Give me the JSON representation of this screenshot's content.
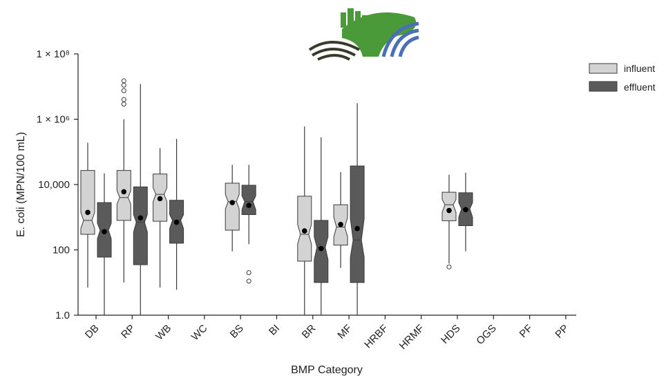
{
  "colors": {
    "influent": "#d3d3d3",
    "effluent": "#5a5a5a",
    "stroke": "#3a3a3a",
    "logo_green": "#4a9a3a",
    "logo_blue": "#4a6fb5",
    "logo_dark": "#3a3a2a"
  },
  "chart_data": {
    "type": "box",
    "xlabel": "BMP Category",
    "ylabel": "E. coli (MPN/100 mL)",
    "yscale": "log",
    "ylim": [
      1.0,
      100000000
    ],
    "yticks": [
      {
        "value": 1.0,
        "label": "1.0"
      },
      {
        "value": 100,
        "label": "100"
      },
      {
        "value": 10000,
        "label": "10,000"
      },
      {
        "value": 1000000,
        "label": "1 × 10⁶"
      },
      {
        "value": 100000000,
        "label": "1 × 10⁸"
      }
    ],
    "categories": [
      "DB",
      "RP",
      "WB",
      "WC",
      "BS",
      "BI",
      "BR",
      "MF",
      "HRBF",
      "HRMF",
      "HDS",
      "OGS",
      "PF",
      "PP"
    ],
    "legend": {
      "position": "top-right",
      "entries": [
        "influent",
        "effluent"
      ]
    },
    "series": [
      {
        "name": "influent",
        "boxes": [
          {
            "category": "DB",
            "whislo": 7,
            "q1": 300,
            "med": 800,
            "q3": 27000,
            "whishi": 190000,
            "mean": 1400,
            "notch": [
              450,
              1400
            ],
            "outliers": []
          },
          {
            "category": "RP",
            "whislo": 10,
            "q1": 800,
            "med": 4000,
            "q3": 27000,
            "whishi": 1000000,
            "mean": 6000,
            "notch": [
              2500,
              6500
            ],
            "outliers": [
              15000000,
              11000000,
              7500000,
              4000000,
              2900000
            ]
          },
          {
            "category": "WB",
            "whislo": 7,
            "q1": 750,
            "med": 5000,
            "q3": 21000,
            "whishi": 130000,
            "mean": 3700,
            "notch": [
              3000,
              8000
            ],
            "outliers": []
          },
          {
            "category": "BS",
            "whislo": 90,
            "q1": 400,
            "med": 3000,
            "q3": 11000,
            "whishi": 40000,
            "mean": 2800,
            "notch": [
              1800,
              5000
            ],
            "outliers": []
          },
          {
            "category": "BR",
            "whislo": 1,
            "q1": 45,
            "med": 300,
            "q3": 4400,
            "whishi": 600000,
            "mean": 380,
            "notch": [
              150,
              600
            ],
            "outliers": []
          },
          {
            "category": "MF",
            "whislo": 28,
            "q1": 140,
            "med": 500,
            "q3": 2400,
            "whishi": 24000,
            "mean": 600,
            "notch": [
              250,
              1000
            ],
            "outliers": []
          },
          {
            "category": "HDS",
            "whislo": 38,
            "q1": 780,
            "med": 2400,
            "q3": 5800,
            "whishi": 20000,
            "mean": 1600,
            "notch": [
              1400,
              3500
            ],
            "outliers": [
              30
            ]
          }
        ]
      },
      {
        "name": "effluent",
        "boxes": [
          {
            "category": "DB",
            "whislo": 1,
            "q1": 60,
            "med": 400,
            "q3": 2800,
            "whishi": 22000,
            "mean": 360,
            "notch": [
              220,
              650
            ],
            "outliers": []
          },
          {
            "category": "RP",
            "whislo": 1,
            "q1": 35,
            "med": 700,
            "q3": 8500,
            "whishi": 12000000,
            "mean": 950,
            "notch": [
              350,
              1200
            ],
            "outliers": []
          },
          {
            "category": "WB",
            "whislo": 6,
            "q1": 160,
            "med": 800,
            "q3": 3300,
            "whishi": 250000,
            "mean": 700,
            "notch": [
              450,
              1200
            ],
            "outliers": []
          },
          {
            "category": "BS",
            "whislo": 150,
            "q1": 1200,
            "med": 3000,
            "q3": 9500,
            "whishi": 40000,
            "mean": 2300,
            "notch": [
              1700,
              4500
            ],
            "outliers": [
              20,
              11
            ]
          },
          {
            "category": "BR",
            "whislo": 1,
            "q1": 10,
            "med": 120,
            "q3": 800,
            "whishi": 280000,
            "mean": 110,
            "notch": [
              50,
              250
            ],
            "outliers": []
          },
          {
            "category": "MF",
            "whislo": 1,
            "q1": 10,
            "med": 200,
            "q3": 37000,
            "whishi": 3100000,
            "mean": 450,
            "notch": [
              60,
              900
            ],
            "outliers": []
          },
          {
            "category": "HDS",
            "whislo": 90,
            "q1": 550,
            "med": 1800,
            "q3": 5600,
            "whishi": 23000,
            "mean": 1700,
            "notch": [
              1000,
              2800
            ],
            "outliers": []
          }
        ]
      }
    ]
  }
}
